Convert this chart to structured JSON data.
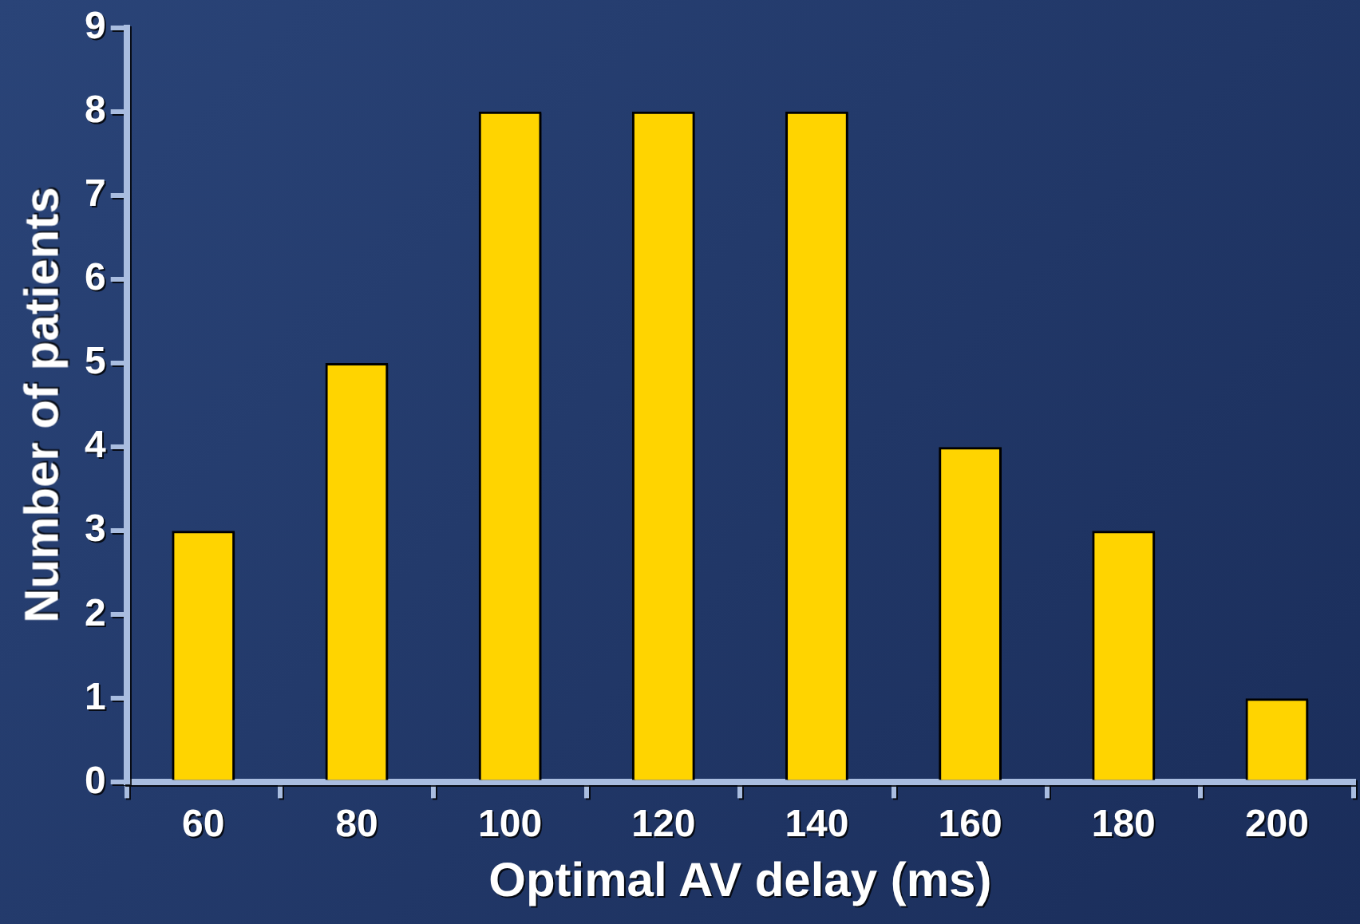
{
  "chart_data": {
    "type": "bar",
    "xlabel": "Optimal AV delay (ms)",
    "ylabel": "Number of patients",
    "categories": [
      "60",
      "80",
      "100",
      "120",
      "140",
      "160",
      "180",
      "200"
    ],
    "values": [
      3,
      5,
      8,
      8,
      8,
      4,
      3,
      1
    ],
    "color": "#ffd400",
    "ylim": [
      0,
      9
    ],
    "yticks": [
      0,
      1,
      2,
      3,
      4,
      5,
      6,
      7,
      8,
      9
    ],
    "grid": false,
    "legend": false
  }
}
